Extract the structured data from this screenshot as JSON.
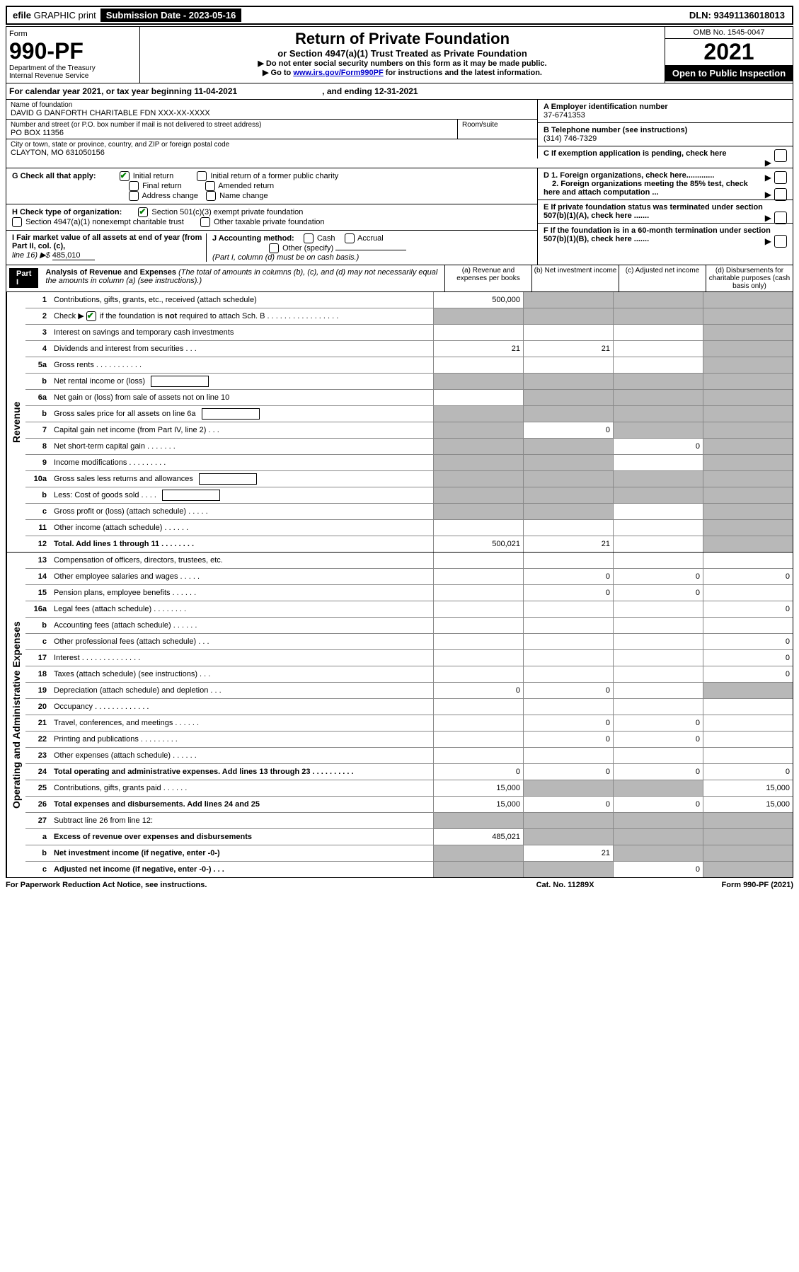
{
  "top": {
    "efile_left": "efile",
    "efile_right": "GRAPHIC print",
    "submission_date_label": "Submission Date - 2023-05-16",
    "dln": "DLN: 93491136018013"
  },
  "header": {
    "form_label": "Form",
    "form_number": "990-PF",
    "dept1": "Department of the Treasury",
    "dept2": "Internal Revenue Service",
    "title": "Return of Private Foundation",
    "subtitle1": "or Section 4947(a)(1) Trust Treated as Private Foundation",
    "subtitle2": "▶ Do not enter social security numbers on this form as it may be made public.",
    "subtitle3_pre": "▶ Go to ",
    "subtitle3_link": "www.irs.gov/Form990PF",
    "subtitle3_post": " for instructions and the latest information.",
    "omb": "OMB No. 1545-0047",
    "year": "2021",
    "inspect": "Open to Public Inspection"
  },
  "calendar": {
    "text1": "For calendar year 2021, or tax year beginning 11-04-2021",
    "text2": ", and ending 12-31-2021"
  },
  "name": {
    "name_label": "Name of foundation",
    "name_val": "DAVID G DANFORTH CHARITABLE FDN XXX-XX-XXXX",
    "addr_label": "Number and street (or P.O. box number if mail is not delivered to street address)",
    "addr_val": "PO BOX 11356",
    "room_label": "Room/suite",
    "city_label": "City or town, state or province, country, and ZIP or foreign postal code",
    "city_val": "CLAYTON, MO  631050156",
    "ein_label": "A Employer identification number",
    "ein_val": "37-6741353",
    "phone_label": "B Telephone number (see instructions)",
    "phone_val": "(314) 746-7329",
    "c_label": "C If exemption application is pending, check here"
  },
  "sectionG": {
    "g_label": "G Check all that apply:",
    "g_opts": [
      "Initial return",
      "Initial return of a former public charity",
      "Final return",
      "Amended return",
      "Address change",
      "Name change"
    ],
    "h_label": "H Check type of organization:",
    "h_opt1": "Section 501(c)(3) exempt private foundation",
    "h_opt2": "Section 4947(a)(1) nonexempt charitable trust",
    "h_opt3": "Other taxable private foundation",
    "i_label1": "I Fair market value of all assets at end of year (from Part II, col. (c),",
    "i_label2": "line 16) ▶$",
    "i_val": "485,010",
    "j_label": "J Accounting method:",
    "j_opts": [
      "Cash",
      "Accrual",
      "Other (specify)"
    ],
    "j_note": "(Part I, column (d) must be on cash basis.)"
  },
  "sectionD": {
    "d1": "D 1. Foreign organizations, check here.............",
    "d2": "2. Foreign organizations meeting the 85% test, check here and attach computation ...",
    "e": "E  If private foundation status was terminated under section 507(b)(1)(A), check here .......",
    "f": "F  If the foundation is in a 60-month termination under section 507(b)(1)(B), check here .......",
    "arrow": "▶"
  },
  "part1": {
    "label": "Part I",
    "title": "Analysis of Revenue and Expenses",
    "note": " (The total of amounts in columns (b), (c), and (d) may not necessarily equal the amounts in column (a) (see instructions).)",
    "col_a": "(a)  Revenue and expenses per books",
    "col_b": "(b)  Net investment income",
    "col_c": "(c)  Adjusted net income",
    "col_d": "(d)  Disbursements for charitable purposes (cash basis only)"
  },
  "revenue_label": "Revenue",
  "expenses_label": "Operating and Administrative Expenses",
  "rows": [
    {
      "num": "1",
      "label": "Contributions, gifts, grants, etc., received (attach schedule)",
      "a": "500,000",
      "b": "grey",
      "c": "grey",
      "d": "grey"
    },
    {
      "num": "2",
      "label": "Check ▶ [✔] if the foundation is not required to attach Sch. B    .  .  .  .  .  .  .  .  .  .  .  .  .  .  .  .  .",
      "a": "grey",
      "b": "grey",
      "c": "grey",
      "d": "grey"
    },
    {
      "num": "3",
      "label": "Interest on savings and temporary cash investments",
      "a": "",
      "b": "",
      "c": "",
      "d": "grey"
    },
    {
      "num": "4",
      "label": "Dividends and interest from securities    .   .   .",
      "a": "21",
      "b": "21",
      "c": "",
      "d": "grey"
    },
    {
      "num": "5a",
      "label": "Gross rents    .   .   .   .   .   .   .   .   .   .   .",
      "a": "",
      "b": "",
      "c": "",
      "d": "grey"
    },
    {
      "num": "b",
      "label": "Net rental income or (loss)",
      "a": "grey",
      "b": "grey",
      "c": "grey",
      "d": "grey",
      "box": true
    },
    {
      "num": "6a",
      "label": "Net gain or (loss) from sale of assets not on line 10",
      "a": "",
      "b": "grey",
      "c": "grey",
      "d": "grey"
    },
    {
      "num": "b",
      "label": "Gross sales price for all assets on line 6a",
      "a": "grey",
      "b": "grey",
      "c": "grey",
      "d": "grey",
      "box": true
    },
    {
      "num": "7",
      "label": "Capital gain net income (from Part IV, line 2)    .   .   .",
      "a": "grey",
      "b": "0",
      "c": "grey",
      "d": "grey"
    },
    {
      "num": "8",
      "label": "Net short-term capital gain   .   .   .   .   .   .   .",
      "a": "grey",
      "b": "grey",
      "c": "0",
      "d": "grey"
    },
    {
      "num": "9",
      "label": "Income modifications   .   .   .   .   .   .   .   .   .",
      "a": "grey",
      "b": "grey",
      "c": "",
      "d": "grey"
    },
    {
      "num": "10a",
      "label": "Gross sales less returns and allowances",
      "a": "grey",
      "b": "grey",
      "c": "grey",
      "d": "grey",
      "box": true
    },
    {
      "num": "b",
      "label": "Less: Cost of goods sold    .   .   .   .",
      "a": "grey",
      "b": "grey",
      "c": "grey",
      "d": "grey",
      "box": true
    },
    {
      "num": "c",
      "label": "Gross profit or (loss) (attach schedule)    .   .   .   .   .",
      "a": "grey",
      "b": "grey",
      "c": "",
      "d": "grey"
    },
    {
      "num": "11",
      "label": "Other income (attach schedule)    .   .   .   .   .   .",
      "a": "",
      "b": "",
      "c": "",
      "d": "grey"
    },
    {
      "num": "12",
      "label": "Total. Add lines 1 through 11    .   .   .   .   .   .   .   .",
      "a": "500,021",
      "b": "21",
      "c": "",
      "d": "grey",
      "bold": true
    }
  ],
  "expense_rows": [
    {
      "num": "13",
      "label": "Compensation of officers, directors, trustees, etc.",
      "a": "",
      "b": "",
      "c": "",
      "d": ""
    },
    {
      "num": "14",
      "label": "Other employee salaries and wages    .   .   .   .   .",
      "a": "",
      "b": "0",
      "c": "0",
      "d": "0"
    },
    {
      "num": "15",
      "label": "Pension plans, employee benefits   .   .   .   .   .   .",
      "a": "",
      "b": "0",
      "c": "0",
      "d": ""
    },
    {
      "num": "16a",
      "label": "Legal fees (attach schedule)  .   .   .   .   .   .   .   .",
      "a": "",
      "b": "",
      "c": "",
      "d": "0"
    },
    {
      "num": "b",
      "label": "Accounting fees (attach schedule)  .   .   .   .   .   .",
      "a": "",
      "b": "",
      "c": "",
      "d": ""
    },
    {
      "num": "c",
      "label": "Other professional fees (attach schedule)    .   .   .",
      "a": "",
      "b": "",
      "c": "",
      "d": "0"
    },
    {
      "num": "17",
      "label": "Interest  .   .   .   .   .   .   .   .   .   .   .   .   .   .",
      "a": "",
      "b": "",
      "c": "",
      "d": "0"
    },
    {
      "num": "18",
      "label": "Taxes (attach schedule) (see instructions)    .   .   .",
      "a": "",
      "b": "",
      "c": "",
      "d": "0"
    },
    {
      "num": "19",
      "label": "Depreciation (attach schedule) and depletion    .   .   .",
      "a": "0",
      "b": "0",
      "c": "",
      "d": "grey"
    },
    {
      "num": "20",
      "label": "Occupancy  .   .   .   .   .   .   .   .   .   .   .   .   .",
      "a": "",
      "b": "",
      "c": "",
      "d": ""
    },
    {
      "num": "21",
      "label": "Travel, conferences, and meetings  .   .   .   .   .   .",
      "a": "",
      "b": "0",
      "c": "0",
      "d": ""
    },
    {
      "num": "22",
      "label": "Printing and publications  .   .   .   .   .   .   .   .   .",
      "a": "",
      "b": "0",
      "c": "0",
      "d": ""
    },
    {
      "num": "23",
      "label": "Other expenses (attach schedule)  .   .   .   .   .   .",
      "a": "",
      "b": "",
      "c": "",
      "d": ""
    },
    {
      "num": "24",
      "label": "Total operating and administrative expenses. Add lines 13 through 23   .   .   .   .   .   .   .   .   .   .",
      "a": "0",
      "b": "0",
      "c": "0",
      "d": "0",
      "bold": true
    },
    {
      "num": "25",
      "label": "Contributions, gifts, grants paid    .   .   .   .   .   .",
      "a": "15,000",
      "b": "grey",
      "c": "grey",
      "d": "15,000"
    },
    {
      "num": "26",
      "label": "Total expenses and disbursements. Add lines 24 and 25",
      "a": "15,000",
      "b": "0",
      "c": "0",
      "d": "15,000",
      "bold": true
    },
    {
      "num": "27",
      "label": "Subtract line 26 from line 12:",
      "a": "grey",
      "b": "grey",
      "c": "grey",
      "d": "grey"
    },
    {
      "num": "a",
      "label": "Excess of revenue over expenses and disbursements",
      "a": "485,021",
      "b": "grey",
      "c": "grey",
      "d": "grey",
      "bold": true
    },
    {
      "num": "b",
      "label": "Net investment income (if negative, enter -0-)",
      "a": "grey",
      "b": "21",
      "c": "grey",
      "d": "grey",
      "bold": true
    },
    {
      "num": "c",
      "label": "Adjusted net income (if negative, enter -0-)   .   .   .",
      "a": "grey",
      "b": "grey",
      "c": "0",
      "d": "grey",
      "bold": true
    }
  ],
  "footer": {
    "left": "For Paperwork Reduction Act Notice, see instructions.",
    "cat": "Cat. No. 11289X",
    "form": "Form 990-PF (2021)"
  },
  "colors": {
    "grey_cell": "#b8b8b8",
    "link": "#0000cc",
    "check": "#008000"
  }
}
